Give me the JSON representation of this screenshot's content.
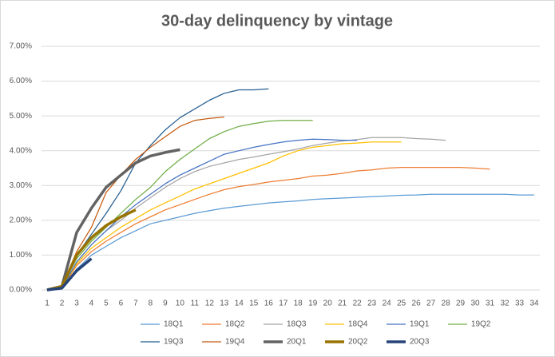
{
  "chart_data": {
    "type": "line",
    "title": "30-day delinquency by vintage",
    "x": [
      1,
      2,
      3,
      4,
      5,
      6,
      7,
      8,
      9,
      10,
      11,
      12,
      13,
      14,
      15,
      16,
      17,
      18,
      19,
      20,
      21,
      22,
      23,
      24,
      25,
      26,
      27,
      28,
      29,
      30,
      31,
      32,
      33,
      34
    ],
    "xlim": [
      1,
      34
    ],
    "ylim": [
      0,
      7
    ],
    "yticks": [
      {
        "value": 0,
        "label": "0.00%"
      },
      {
        "value": 1,
        "label": "1.00%"
      },
      {
        "value": 2,
        "label": "2.00%"
      },
      {
        "value": 3,
        "label": "3.00%"
      },
      {
        "value": 4,
        "label": "4.00%"
      },
      {
        "value": 5,
        "label": "5.00%"
      },
      {
        "value": 6,
        "label": "6.00%"
      },
      {
        "value": 7,
        "label": "7.00%"
      }
    ],
    "grid": true,
    "legend": "bottom",
    "series": [
      {
        "name": "18Q1",
        "color": "#5b9bd5",
        "values": [
          0,
          0.05,
          0.6,
          1.0,
          1.25,
          1.5,
          1.7,
          1.9,
          2.0,
          2.1,
          2.2,
          2.28,
          2.35,
          2.4,
          2.45,
          2.5,
          2.53,
          2.56,
          2.6,
          2.62,
          2.64,
          2.66,
          2.68,
          2.7,
          2.72,
          2.73,
          2.75,
          2.75,
          2.75,
          2.75,
          2.75,
          2.75,
          2.73,
          2.73
        ]
      },
      {
        "name": "18Q2",
        "color": "#ed7d31",
        "values": [
          0,
          0.05,
          0.7,
          1.1,
          1.4,
          1.65,
          1.9,
          2.1,
          2.3,
          2.45,
          2.6,
          2.75,
          2.88,
          2.97,
          3.03,
          3.1,
          3.15,
          3.2,
          3.27,
          3.3,
          3.35,
          3.42,
          3.45,
          3.5,
          3.52,
          3.52,
          3.52,
          3.52,
          3.52,
          3.5,
          3.47,
          null,
          null,
          null
        ]
      },
      {
        "name": "18Q3",
        "color": "#a5a5a5",
        "values": [
          0,
          0.05,
          0.8,
          1.3,
          1.7,
          2.0,
          2.35,
          2.65,
          2.95,
          3.2,
          3.4,
          3.55,
          3.65,
          3.75,
          3.82,
          3.9,
          3.97,
          4.05,
          4.15,
          4.22,
          4.28,
          4.32,
          4.38,
          4.38,
          4.38,
          4.35,
          4.33,
          4.3,
          null,
          null,
          null,
          null,
          null,
          null
        ]
      },
      {
        "name": "18Q4",
        "color": "#ffc000",
        "values": [
          0,
          0.05,
          0.75,
          1.2,
          1.5,
          1.8,
          2.05,
          2.3,
          2.5,
          2.7,
          2.9,
          3.05,
          3.2,
          3.35,
          3.5,
          3.65,
          3.85,
          4.0,
          4.1,
          4.15,
          4.2,
          4.22,
          4.25,
          4.25,
          4.25,
          null,
          null,
          null,
          null,
          null,
          null,
          null,
          null,
          null
        ]
      },
      {
        "name": "19Q1",
        "color": "#4472c4",
        "values": [
          0,
          0.05,
          0.8,
          1.3,
          1.7,
          2.1,
          2.45,
          2.75,
          3.05,
          3.3,
          3.5,
          3.7,
          3.9,
          4.0,
          4.1,
          4.18,
          4.25,
          4.3,
          4.33,
          4.32,
          4.3,
          4.3,
          null,
          null,
          null,
          null,
          null,
          null,
          null,
          null,
          null,
          null,
          null,
          null
        ]
      },
      {
        "name": "19Q2",
        "color": "#70ad47",
        "values": [
          0,
          0.1,
          0.9,
          1.4,
          1.8,
          2.2,
          2.6,
          2.95,
          3.4,
          3.75,
          4.05,
          4.35,
          4.55,
          4.7,
          4.78,
          4.85,
          4.87,
          4.87,
          4.87,
          null,
          null,
          null,
          null,
          null,
          null,
          null,
          null,
          null,
          null,
          null,
          null,
          null,
          null,
          null
        ]
      },
      {
        "name": "19Q3",
        "color": "#255e91",
        "values": [
          0,
          0.1,
          1.0,
          1.6,
          2.2,
          2.85,
          3.65,
          4.15,
          4.6,
          4.95,
          5.2,
          5.45,
          5.65,
          5.75,
          5.75,
          5.78,
          null,
          null,
          null,
          null,
          null,
          null,
          null,
          null,
          null,
          null,
          null,
          null,
          null,
          null,
          null,
          null,
          null,
          null
        ]
      },
      {
        "name": "19Q4",
        "color": "#c55a11",
        "values": [
          0,
          0.1,
          1.1,
          1.8,
          2.8,
          3.3,
          3.75,
          4.1,
          4.4,
          4.7,
          4.87,
          4.93,
          4.97,
          null,
          null,
          null,
          null,
          null,
          null,
          null,
          null,
          null,
          null,
          null,
          null,
          null,
          null,
          null,
          null,
          null,
          null,
          null,
          null,
          null
        ]
      },
      {
        "name": "20Q1",
        "color": "#636363",
        "bold": true,
        "values": [
          0,
          0.1,
          1.65,
          2.35,
          2.95,
          3.3,
          3.65,
          3.85,
          3.95,
          4.03,
          null,
          null,
          null,
          null,
          null,
          null,
          null,
          null,
          null,
          null,
          null,
          null,
          null,
          null,
          null,
          null,
          null,
          null,
          null,
          null,
          null,
          null,
          null,
          null
        ]
      },
      {
        "name": "20Q2",
        "color": "#997300",
        "bold": true,
        "values": [
          0,
          0.1,
          1.0,
          1.5,
          1.85,
          2.1,
          2.3,
          null,
          null,
          null,
          null,
          null,
          null,
          null,
          null,
          null,
          null,
          null,
          null,
          null,
          null,
          null,
          null,
          null,
          null,
          null,
          null,
          null,
          null,
          null,
          null,
          null,
          null,
          null
        ]
      },
      {
        "name": "20Q3",
        "color": "#264478",
        "bold": true,
        "values": [
          0,
          0.05,
          0.55,
          0.9,
          null,
          null,
          null,
          null,
          null,
          null,
          null,
          null,
          null,
          null,
          null,
          null,
          null,
          null,
          null,
          null,
          null,
          null,
          null,
          null,
          null,
          null,
          null,
          null,
          null,
          null,
          null,
          null,
          null,
          null
        ]
      }
    ]
  }
}
